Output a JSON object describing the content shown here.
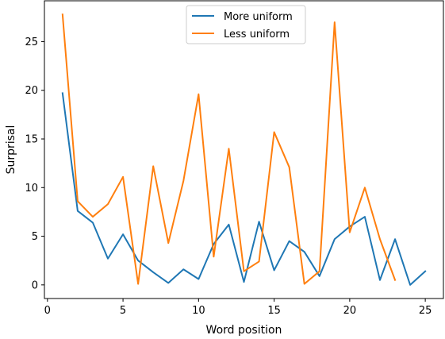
{
  "chart_data": {
    "type": "line",
    "title": "",
    "xlabel": "Word position",
    "ylabel": "Surprisal",
    "xlim": [
      -0.2,
      26.2
    ],
    "ylim": [
      -1.4,
      29.2
    ],
    "xticks": [
      0,
      5,
      10,
      15,
      20,
      25
    ],
    "yticks": [
      0,
      5,
      10,
      15,
      20,
      25
    ],
    "grid": false,
    "legend_position": "top-center",
    "series": [
      {
        "name": "More uniform",
        "color": "#1f77b4",
        "x": [
          1,
          2,
          3,
          4,
          5,
          6,
          7,
          8,
          9,
          10,
          11,
          12,
          13,
          14,
          15,
          16,
          17,
          18,
          19,
          20,
          21,
          22,
          23,
          24,
          25
        ],
        "y": [
          19.7,
          7.6,
          6.4,
          2.7,
          5.2,
          2.5,
          1.3,
          0.2,
          1.6,
          0.6,
          4.2,
          6.2,
          0.3,
          6.5,
          1.5,
          4.5,
          3.4,
          0.9,
          4.7,
          6.0,
          7.0,
          0.5,
          4.7,
          0.0,
          1.4
        ]
      },
      {
        "name": "Less uniform",
        "color": "#ff7f0e",
        "x": [
          1,
          2,
          3,
          4,
          5,
          6,
          7,
          8,
          9,
          10,
          11,
          12,
          13,
          14,
          15,
          16,
          17,
          18,
          19,
          20,
          21,
          22,
          23
        ],
        "y": [
          27.8,
          8.6,
          7.0,
          8.3,
          11.1,
          0.1,
          12.2,
          4.3,
          10.7,
          19.6,
          2.9,
          14.0,
          1.4,
          2.4,
          15.7,
          12.1,
          0.1,
          1.4,
          27.0,
          5.4,
          10.0,
          4.7,
          0.5
        ]
      }
    ]
  }
}
